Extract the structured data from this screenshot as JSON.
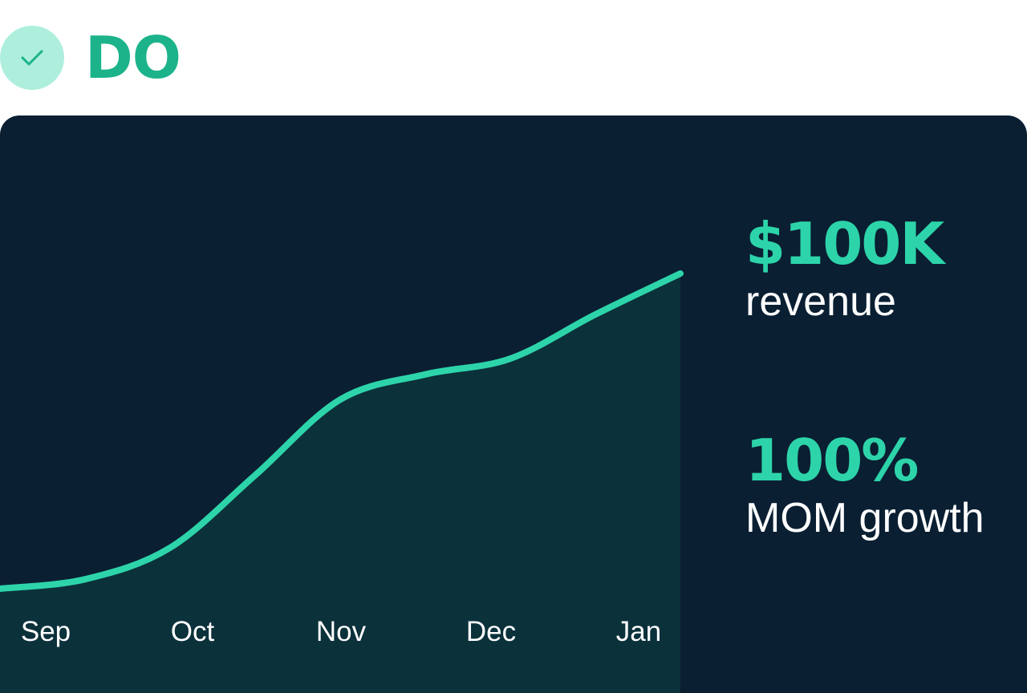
{
  "header": {
    "badge_icon": "check-icon",
    "label": "DO",
    "colors": {
      "badge": "#aeeedd",
      "check": "#1cb38a",
      "label": "#1cb38a"
    }
  },
  "stats": {
    "revenue_value": "$100K",
    "revenue_label": "revenue",
    "growth_value": "100%",
    "growth_label": "MOM growth"
  },
  "chart_data": {
    "type": "area",
    "title": "",
    "xlabel": "",
    "ylabel": "",
    "categories": [
      "Sep",
      "Oct",
      "Nov",
      "Dec",
      "Jan"
    ],
    "x": [
      0,
      0.5,
      1,
      1.5,
      2,
      2.5,
      3,
      3.5,
      4
    ],
    "values": [
      0,
      3,
      13,
      36,
      60,
      68,
      73,
      87,
      100
    ],
    "ylim": [
      0,
      100
    ],
    "grid": false,
    "legend": "none",
    "colors": {
      "line": "#2dd4aa",
      "fill": "#0b313b",
      "background": "#0a1f32",
      "tick_label": "#ffffff"
    }
  }
}
